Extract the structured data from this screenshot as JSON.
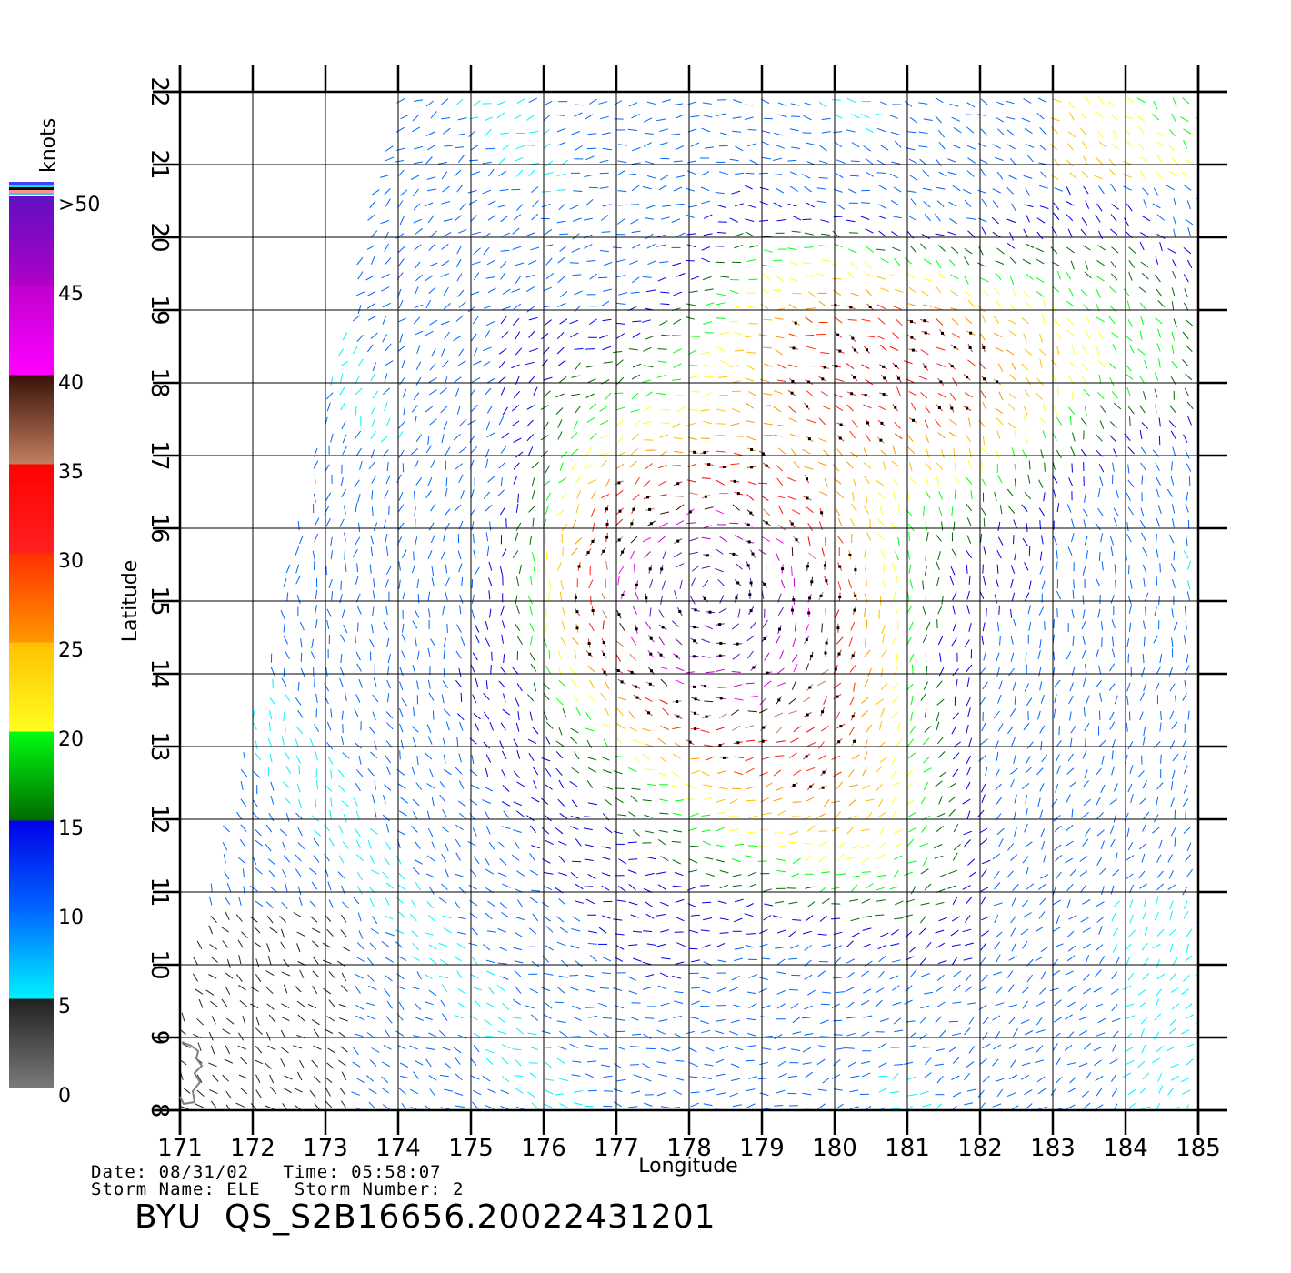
{
  "chart_data": {
    "type": "wind-vector-map",
    "x_axis": {
      "label": "Longitude",
      "ticks": [
        "171",
        "172",
        "173",
        "174",
        "175",
        "176",
        "177",
        "178",
        "179",
        "180",
        "181",
        "182",
        "183",
        "184",
        "185"
      ],
      "range": [
        171,
        185
      ]
    },
    "y_axis": {
      "label": "Latitude",
      "ticks": [
        "8",
        "9",
        "10",
        "11",
        "12",
        "13",
        "14",
        "15",
        "16",
        "17",
        "18",
        "19",
        "20",
        "21",
        "22"
      ],
      "range": [
        8,
        22
      ]
    },
    "colorbar": {
      "unit": "knots",
      "labels": [
        ">50",
        "45",
        "40",
        "35",
        "30",
        "25",
        "20",
        "15",
        "10",
        "5",
        "0"
      ],
      "bands": [
        {
          "from": 0,
          "to": 5,
          "colors": [
            "#7a7a7a",
            "#202020"
          ]
        },
        {
          "from": 5,
          "to": 10,
          "colors": [
            "#00f2ff",
            "#0066ff"
          ]
        },
        {
          "from": 10,
          "to": 15,
          "colors": [
            "#0066ff",
            "#0000e8"
          ]
        },
        {
          "from": 15,
          "to": 20,
          "colors": [
            "#006a00",
            "#00ff10"
          ]
        },
        {
          "from": 20,
          "to": 25,
          "colors": [
            "#ffff20",
            "#ffc000"
          ]
        },
        {
          "from": 25,
          "to": 30,
          "colors": [
            "#ff9800",
            "#ff3000"
          ]
        },
        {
          "from": 30,
          "to": 35,
          "colors": [
            "#ff2020",
            "#ff0000"
          ]
        },
        {
          "from": 35,
          "to": 40,
          "colors": [
            "#c08060",
            "#3a1008"
          ]
        },
        {
          "from": 40,
          "to": 45,
          "colors": [
            "#ff00ff",
            "#c000d0"
          ]
        },
        {
          "from": 45,
          "to": 50,
          "colors": [
            "#b000c8",
            "#6010c0"
          ]
        }
      ],
      "overflow_stripes": [
        "#4040ff",
        "#00e8e8",
        "#000000",
        "#ff9090",
        "#40c0ff"
      ]
    },
    "storm_center": {
      "lon": 178.3,
      "lat": 15.1
    },
    "wind_regions": [
      {
        "lon_range": [
          171,
          173.2
        ],
        "lat_range": [
          8,
          10.8
        ],
        "speed_knots": "0-5"
      },
      {
        "lon_range": [
          176.5,
          181
        ],
        "lat_range": [
          13,
          17
        ],
        "speed_knots": "30-45"
      },
      {
        "lon_range": [
          174,
          185
        ],
        "lat_range": [
          17,
          20
        ],
        "speed_knots": "20-35"
      },
      {
        "lon_range": [
          172,
          185
        ],
        "lat_range": [
          8,
          12
        ],
        "speed_knots": "5-15"
      }
    ],
    "grid": true
  },
  "info": {
    "date_line": "Date: 08/31/02   Time: 05:58:07",
    "storm_line": "Storm Name: ELE   Storm Number: 2",
    "product_id": "BYU  QS_S2B16656.20022431201"
  }
}
